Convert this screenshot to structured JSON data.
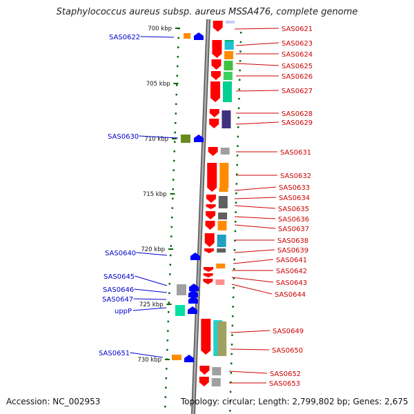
{
  "title": "Staphylococcus aureus subsp. aureus MSSA476, complete genome",
  "accession": "Accession: NC_002953",
  "topology": "Topology: circular; Length: 2,799,802 bp; Genes: 2,675",
  "colors": {
    "forward_gene": "#ff0000",
    "reverse_gene": "#0000ff",
    "tick": "#006400",
    "label_right": "#cc0000",
    "label_left": "#0000cc",
    "backbone": "#999999"
  },
  "scale_labels": [
    "700 kbp",
    "705 kbp",
    "710 kbp",
    "715 kbp",
    "720 kbp",
    "725 kbp",
    "730 kbp"
  ],
  "right_genes": [
    "SAS0621",
    "SAS0623",
    "SAS0624",
    "SAS0625",
    "SAS0626",
    "SAS0627",
    "SAS0628",
    "SAS0629",
    "SAS0631",
    "SAS0632",
    "SAS0633",
    "SAS0634",
    "SAS0635",
    "SAS0636",
    "SAS0637",
    "SAS0638",
    "SAS0639",
    "SAS0641",
    "SAS0642",
    "SAS0643",
    "SAS0644",
    "SAS0649",
    "SAS0650",
    "SAS0652",
    "SAS0653"
  ],
  "left_genes": [
    "SAS0622",
    "SAS0630",
    "SAS0640",
    "SAS0645",
    "SAS0646",
    "SAS0647",
    "uppP",
    "SAS0651"
  ]
}
